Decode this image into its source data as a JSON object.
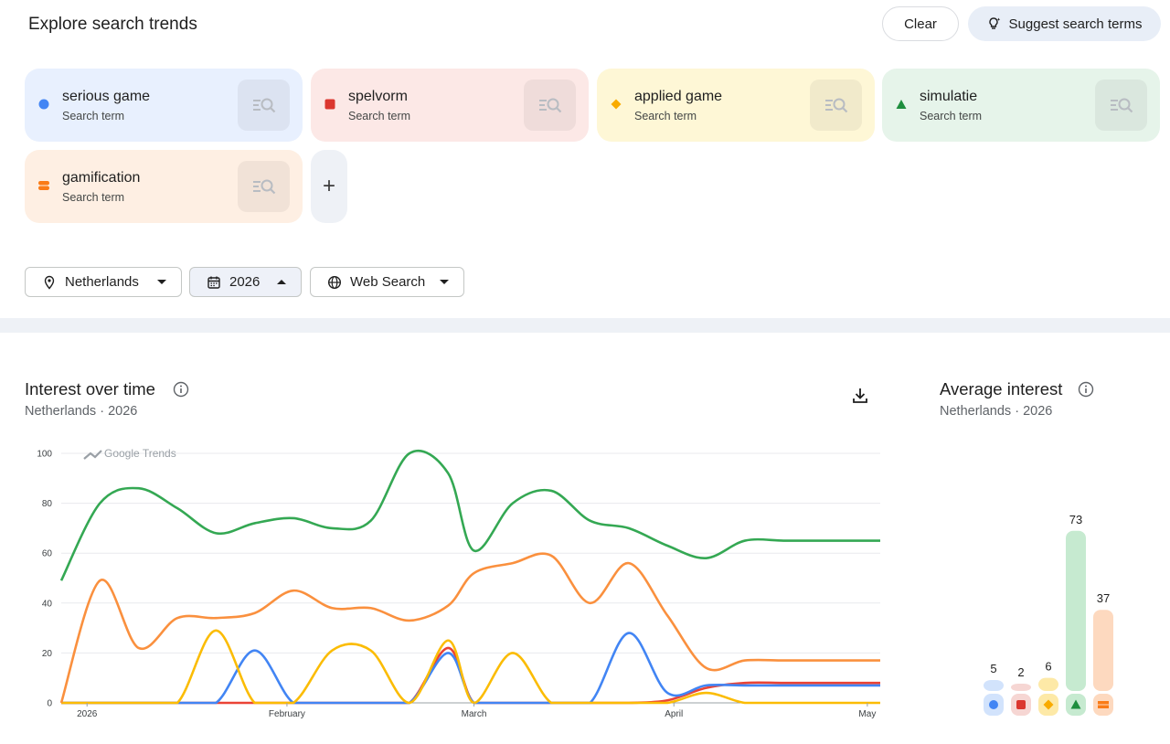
{
  "header": {
    "title": "Explore search trends",
    "clear_label": "Clear",
    "suggest_label": "Suggest search terms"
  },
  "terms": [
    {
      "name": "serious game",
      "sub": "Search term",
      "color": "#4285f4",
      "bg": "#e8f0fe",
      "shape": "circle"
    },
    {
      "name": "spelvorm",
      "sub": "Search term",
      "color": "#db372f",
      "bg": "#fce8e6",
      "shape": "square"
    },
    {
      "name": "applied game",
      "sub": "Search term",
      "color": "#f9ab00",
      "bg": "#fef7d6",
      "shape": "diamond"
    },
    {
      "name": "simulatie",
      "sub": "Search term",
      "color": "#1e8e3e",
      "bg": "#e6f4ea",
      "shape": "triangle"
    },
    {
      "name": "gamification",
      "sub": "Search term",
      "color": "#fa7b17",
      "bg": "#feefe3",
      "shape": "pill"
    }
  ],
  "add_term_label": "+",
  "filters": {
    "location": "Netherlands",
    "period": "2026",
    "property": "Web Search"
  },
  "interest_over_time": {
    "title": "Interest over time",
    "subtitle": "Netherlands · 2026",
    "watermark": "Google Trends"
  },
  "average_interest": {
    "title": "Average interest",
    "subtitle": "Netherlands · 2026"
  },
  "chart_data": [
    {
      "type": "line",
      "title": "Interest over time",
      "x_tick_labels": [
        "2026",
        "February",
        "March",
        "April",
        "May"
      ],
      "x_tick_days": [
        4,
        35,
        64,
        95,
        125
      ],
      "y_ticks": [
        0,
        20,
        40,
        60,
        80,
        100
      ],
      "ylim": [
        0,
        100
      ],
      "grid": true,
      "x_days": [
        0,
        6,
        12,
        18,
        24,
        30,
        36,
        42,
        48,
        54,
        60,
        64,
        70,
        76,
        82,
        88,
        94,
        100,
        106,
        112,
        118,
        124,
        127
      ],
      "series": [
        {
          "name": "simulatie",
          "color": "#34a853",
          "values": [
            49,
            80,
            86,
            78,
            68,
            72,
            74,
            70,
            73,
            100,
            92,
            61,
            80,
            85,
            73,
            70,
            63,
            58,
            65,
            65,
            65,
            65,
            65
          ]
        },
        {
          "name": "gamification",
          "color": "#fa903e",
          "values": [
            0,
            49,
            22,
            34,
            34,
            36,
            45,
            38,
            38,
            33,
            39,
            52,
            56,
            59,
            40,
            56,
            35,
            14,
            17,
            17,
            17,
            17,
            17
          ]
        },
        {
          "name": "applied game",
          "color": "#fbbc04",
          "values": [
            0,
            0,
            0,
            0,
            29,
            0,
            0,
            21,
            21,
            0,
            25,
            0,
            20,
            0,
            0,
            0,
            0,
            4,
            0,
            0,
            0,
            0,
            0
          ]
        },
        {
          "name": "serious game",
          "color": "#4285f4",
          "values": [
            0,
            0,
            0,
            0,
            0,
            21,
            0,
            0,
            0,
            0,
            20,
            0,
            0,
            0,
            0,
            28,
            4,
            7,
            7,
            7,
            7,
            7,
            7
          ]
        },
        {
          "name": "spelvorm",
          "color": "#ea4335",
          "values": [
            0,
            0,
            0,
            0,
            0,
            0,
            0,
            0,
            0,
            0,
            22,
            0,
            0,
            0,
            0,
            0,
            1,
            6,
            8,
            8,
            8,
            8,
            8
          ]
        }
      ]
    },
    {
      "type": "bar",
      "title": "Average interest",
      "categories": [
        "serious game",
        "spelvorm",
        "applied game",
        "simulatie",
        "gamification"
      ],
      "values": [
        5,
        2,
        6,
        73,
        37
      ],
      "ylim": [
        0,
        100
      ]
    }
  ]
}
